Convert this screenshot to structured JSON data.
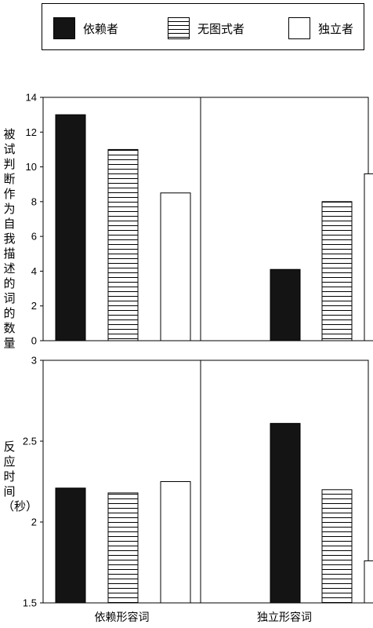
{
  "legend": {
    "items": [
      {
        "label": "依赖者",
        "fill": "black"
      },
      {
        "label": "无图式者",
        "fill": "hatch"
      },
      {
        "label": "独立者",
        "fill": "white"
      }
    ]
  },
  "chart_data": [
    {
      "type": "bar",
      "ylabel": "被试判断作为自我描述的词的数量",
      "ylim": [
        0,
        14
      ],
      "yticks": [
        "0",
        "2",
        "4",
        "6",
        "8",
        "10",
        "12",
        "14"
      ],
      "categories": [
        "依赖形容词",
        "独立形容词"
      ],
      "series": [
        {
          "name": "依赖者",
          "values": [
            13,
            4.1
          ]
        },
        {
          "name": "无图式者",
          "values": [
            11,
            8
          ]
        },
        {
          "name": "独立者",
          "values": [
            8.5,
            9.6
          ]
        }
      ]
    },
    {
      "type": "bar",
      "ylabel": "反应时间（秒）",
      "ylim": [
        1.5,
        3
      ],
      "yticks": [
        "1.5",
        "2",
        "2.5",
        "3"
      ],
      "categories": [
        "依赖形容词",
        "独立形容词"
      ],
      "series": [
        {
          "name": "依赖者",
          "values": [
            2.21,
            2.61
          ]
        },
        {
          "name": "无图式者",
          "values": [
            2.18,
            2.2
          ]
        },
        {
          "name": "独立者",
          "values": [
            2.25,
            1.76
          ]
        }
      ]
    }
  ],
  "colors": {
    "black": "#141414",
    "white": "#ffffff",
    "line": "#000000"
  }
}
